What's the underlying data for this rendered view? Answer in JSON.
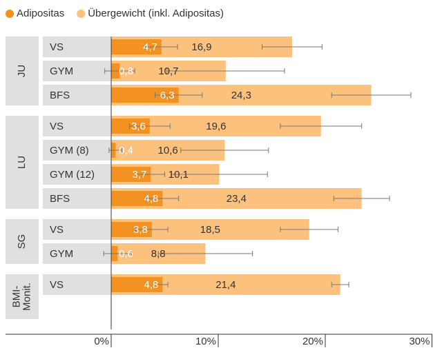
{
  "chart_data": {
    "type": "bar",
    "groups": [
      {
        "label": [
          "JU"
        ],
        "categories": [
          "VS",
          "GYM",
          "BFS"
        ]
      },
      {
        "label": [
          "LU"
        ],
        "categories": [
          "VS",
          "GYM (8)",
          "GYM (12)",
          "BFS"
        ]
      },
      {
        "label": [
          "SG"
        ],
        "categories": [
          "VS",
          "GYM"
        ]
      },
      {
        "label": [
          "BMI-",
          "Monit."
        ],
        "categories": [
          "VS"
        ]
      }
    ],
    "series": [
      {
        "name": "Übergewicht (inkl. Adipositas)",
        "color": "#fcc17d",
        "values": [
          16.9,
          10.7,
          24.3,
          19.6,
          10.6,
          10.1,
          23.4,
          18.5,
          8.8,
          21.4
        ],
        "value_labels": [
          "16,9",
          "10,7",
          "24,3",
          "19,6",
          "10,6",
          "10,1",
          "23,4",
          "18,5",
          "8,8",
          "21,4"
        ],
        "errors": [
          2.8,
          5.5,
          3.7,
          3.8,
          4.1,
          4.5,
          2.6,
          2.7,
          4.4,
          0.8
        ]
      },
      {
        "name": "Adipositas",
        "color": "#f39221",
        "values": [
          4.7,
          0.8,
          6.3,
          3.6,
          0.4,
          3.7,
          4.8,
          3.8,
          0.6,
          4.8
        ],
        "value_labels": [
          "4,7",
          "0,8",
          "6,3",
          "3,6",
          "0,4",
          "3,7",
          "4,8",
          "3,8",
          "0,6",
          "4,8"
        ],
        "errors": [
          1.5,
          1.4,
          2.2,
          1.9,
          0.6,
          1.3,
          1.5,
          1.5,
          1.3,
          0.5
        ]
      }
    ],
    "xlim": [
      0,
      30
    ],
    "xticks": [
      {
        "value": 0,
        "label": "0%"
      },
      {
        "value": 10,
        "label": "10%"
      },
      {
        "value": 20,
        "label": "20%"
      },
      {
        "value": 30,
        "label": "30%"
      }
    ]
  }
}
